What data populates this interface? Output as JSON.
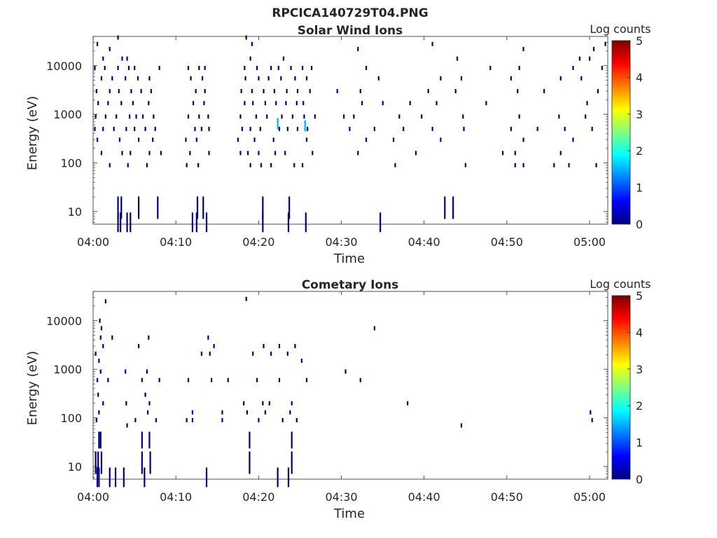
{
  "figure": {
    "suptitle": "RPCICA140729T04.PNG"
  },
  "chart_data": [
    {
      "type": "heatmap",
      "title": "Solar Wind Ions",
      "xlabel": "Time",
      "ylabel": "Energy (eV)",
      "x_ticks": [
        "04:00",
        "04:10",
        "04:20",
        "04:30",
        "04:40",
        "04:50",
        "05:00"
      ],
      "x_range_minutes": [
        0,
        62.2
      ],
      "y_ticks": [
        "10",
        "100",
        "1000",
        "10000"
      ],
      "y_scale": "log",
      "y_range": [
        5.5,
        40000
      ],
      "colorbar": {
        "label": "Log counts",
        "ticks": [
          "0",
          "1",
          "2",
          "3",
          "4",
          "5"
        ],
        "range": [
          0,
          5
        ],
        "colormap": "jet"
      },
      "points": [
        [
          3.0,
          6
        ],
        [
          3.3,
          6
        ],
        [
          4.1,
          6
        ],
        [
          4.5,
          6
        ],
        [
          12.0,
          6
        ],
        [
          12.5,
          6
        ],
        [
          13.7,
          6
        ],
        [
          20.5,
          6
        ],
        [
          23.6,
          6
        ],
        [
          25.7,
          6
        ],
        [
          34.7,
          6
        ],
        [
          3.0,
          12
        ],
        [
          3.4,
          12
        ],
        [
          5.5,
          12
        ],
        [
          7.8,
          12
        ],
        [
          12.6,
          12
        ],
        [
          13.3,
          12
        ],
        [
          20.5,
          12
        ],
        [
          23.7,
          12
        ],
        [
          42.5,
          12
        ],
        [
          43.5,
          12
        ],
        [
          2.0,
          90
        ],
        [
          4.2,
          90
        ],
        [
          6.5,
          90
        ],
        [
          11.3,
          90
        ],
        [
          12.7,
          90
        ],
        [
          19.0,
          90
        ],
        [
          20.3,
          90
        ],
        [
          21.5,
          90
        ],
        [
          24.3,
          90
        ],
        [
          25.3,
          90
        ],
        [
          36.5,
          90
        ],
        [
          45.0,
          90
        ],
        [
          51.0,
          90
        ],
        [
          52.0,
          90
        ],
        [
          55.7,
          90
        ],
        [
          57.5,
          90
        ],
        [
          60.8,
          90
        ],
        [
          1.0,
          160
        ],
        [
          3.5,
          160
        ],
        [
          4.5,
          160
        ],
        [
          6.8,
          160
        ],
        [
          8.2,
          160
        ],
        [
          11.7,
          160
        ],
        [
          14.0,
          160
        ],
        [
          17.8,
          160
        ],
        [
          18.7,
          160
        ],
        [
          20.0,
          160
        ],
        [
          22.0,
          160
        ],
        [
          23.2,
          160
        ],
        [
          26.5,
          160
        ],
        [
          32.0,
          160
        ],
        [
          39.0,
          160
        ],
        [
          49.5,
          160
        ],
        [
          51.0,
          160
        ],
        [
          56.5,
          160
        ],
        [
          0.5,
          300
        ],
        [
          3.2,
          300
        ],
        [
          5.5,
          300
        ],
        [
          7.2,
          300
        ],
        [
          11.2,
          300
        ],
        [
          12.5,
          300
        ],
        [
          17.5,
          300
        ],
        [
          19.5,
          300
        ],
        [
          21.8,
          300
        ],
        [
          25.8,
          300
        ],
        [
          33.0,
          300
        ],
        [
          36.3,
          300
        ],
        [
          42.0,
          300
        ],
        [
          52.0,
          300
        ],
        [
          58.0,
          300
        ],
        [
          0.2,
          500
        ],
        [
          1.2,
          500
        ],
        [
          2.5,
          500
        ],
        [
          4.0,
          500
        ],
        [
          5.0,
          500
        ],
        [
          6.3,
          500
        ],
        [
          7.5,
          500
        ],
        [
          12.3,
          500
        ],
        [
          13.1,
          500
        ],
        [
          14.0,
          500
        ],
        [
          18.0,
          500
        ],
        [
          19.0,
          500
        ],
        [
          20.2,
          500
        ],
        [
          22.5,
          500
        ],
        [
          23.5,
          500
        ],
        [
          24.7,
          500
        ],
        [
          25.9,
          500
        ],
        [
          31.0,
          500
        ],
        [
          34.0,
          500
        ],
        [
          37.5,
          500
        ],
        [
          41.0,
          500
        ],
        [
          44.8,
          500
        ],
        [
          50.5,
          500
        ],
        [
          53.7,
          500
        ],
        [
          57.0,
          500
        ],
        [
          60.3,
          500
        ],
        [
          0.3,
          900
        ],
        [
          1.5,
          900
        ],
        [
          2.8,
          900
        ],
        [
          4.4,
          900
        ],
        [
          5.2,
          900
        ],
        [
          6.0,
          900
        ],
        [
          7.3,
          900
        ],
        [
          11.5,
          900
        ],
        [
          12.8,
          900
        ],
        [
          13.9,
          900
        ],
        [
          17.8,
          900
        ],
        [
          19.7,
          900
        ],
        [
          21.0,
          900
        ],
        [
          22.8,
          900
        ],
        [
          24.1,
          900
        ],
        [
          25.5,
          900
        ],
        [
          26.8,
          900
        ],
        [
          30.3,
          900
        ],
        [
          31.5,
          900
        ],
        [
          37.0,
          900
        ],
        [
          39.7,
          900
        ],
        [
          44.7,
          900
        ],
        [
          51.5,
          900
        ],
        [
          56.3,
          900
        ],
        [
          59.5,
          900
        ],
        [
          0.6,
          1700
        ],
        [
          1.8,
          1700
        ],
        [
          3.4,
          1700
        ],
        [
          4.8,
          1700
        ],
        [
          6.7,
          1700
        ],
        [
          12.1,
          1700
        ],
        [
          13.4,
          1700
        ],
        [
          18.3,
          1700
        ],
        [
          19.3,
          1700
        ],
        [
          20.8,
          1700
        ],
        [
          22.1,
          1700
        ],
        [
          23.3,
          1700
        ],
        [
          24.6,
          1700
        ],
        [
          25.4,
          1700
        ],
        [
          32.5,
          1700
        ],
        [
          35.0,
          1700
        ],
        [
          38.3,
          1700
        ],
        [
          41.5,
          1700
        ],
        [
          47.5,
          1700
        ],
        [
          59.7,
          1700
        ],
        [
          0.4,
          3000
        ],
        [
          2.0,
          3000
        ],
        [
          3.1,
          3000
        ],
        [
          4.6,
          3000
        ],
        [
          5.8,
          3000
        ],
        [
          7.0,
          3000
        ],
        [
          12.4,
          3000
        ],
        [
          13.5,
          3000
        ],
        [
          17.9,
          3000
        ],
        [
          19.2,
          3000
        ],
        [
          20.6,
          3000
        ],
        [
          21.9,
          3000
        ],
        [
          23.4,
          3000
        ],
        [
          24.7,
          3000
        ],
        [
          26.2,
          3000
        ],
        [
          29.5,
          3000
        ],
        [
          32.3,
          3000
        ],
        [
          40.5,
          3000
        ],
        [
          43.8,
          3000
        ],
        [
          51.3,
          3000
        ],
        [
          54.5,
          3000
        ],
        [
          61.0,
          3000
        ],
        [
          1.0,
          5500
        ],
        [
          2.3,
          5500
        ],
        [
          3.9,
          5500
        ],
        [
          5.4,
          5500
        ],
        [
          6.8,
          5500
        ],
        [
          11.8,
          5500
        ],
        [
          13.2,
          5500
        ],
        [
          18.4,
          5500
        ],
        [
          20.0,
          5500
        ],
        [
          21.2,
          5500
        ],
        [
          22.7,
          5500
        ],
        [
          24.4,
          5500
        ],
        [
          25.8,
          5500
        ],
        [
          34.5,
          5500
        ],
        [
          42.0,
          5500
        ],
        [
          44.5,
          5500
        ],
        [
          50.5,
          5500
        ],
        [
          56.5,
          5500
        ],
        [
          59.0,
          5500
        ],
        [
          0.2,
          9000
        ],
        [
          1.4,
          9000
        ],
        [
          3.0,
          9000
        ],
        [
          4.3,
          9000
        ],
        [
          5.0,
          9000
        ],
        [
          8.0,
          9000
        ],
        [
          11.5,
          9000
        ],
        [
          12.8,
          9000
        ],
        [
          13.5,
          9000
        ],
        [
          18.3,
          9000
        ],
        [
          19.8,
          9000
        ],
        [
          21.5,
          9000
        ],
        [
          22.4,
          9000
        ],
        [
          23.9,
          9000
        ],
        [
          25.3,
          9000
        ],
        [
          26.4,
          9000
        ],
        [
          33.0,
          9000
        ],
        [
          48.0,
          9000
        ],
        [
          51.5,
          9000
        ],
        [
          58.0,
          9000
        ],
        [
          61.5,
          9000
        ],
        [
          1.2,
          14000
        ],
        [
          3.5,
          14000
        ],
        [
          4.1,
          14000
        ],
        [
          19.0,
          14000
        ],
        [
          23.0,
          14000
        ],
        [
          44.0,
          14000
        ],
        [
          58.8,
          14000
        ],
        [
          60.0,
          14000
        ],
        [
          2.0,
          22000
        ],
        [
          32.0,
          22000
        ],
        [
          52.0,
          22000
        ],
        [
          60.5,
          22000
        ],
        [
          0.5,
          28000
        ],
        [
          19.2,
          28000
        ],
        [
          41.0,
          28000
        ],
        [
          61.9,
          28000
        ],
        [
          3.0,
          38000
        ],
        [
          18.5,
          38000
        ]
      ],
      "hot_points": [
        [
          22.3,
          640
        ],
        [
          25.6,
          580
        ]
      ]
    },
    {
      "type": "heatmap",
      "title": "Cometary Ions",
      "xlabel": "Time",
      "ylabel": "Energy (eV)",
      "x_ticks": [
        "04:00",
        "04:10",
        "04:20",
        "04:30",
        "04:40",
        "04:50",
        "05:00"
      ],
      "x_range_minutes": [
        0,
        62.2
      ],
      "y_ticks": [
        "10",
        "100",
        "1000",
        "10000"
      ],
      "y_scale": "log",
      "y_range": [
        5.5,
        40000
      ],
      "colorbar": {
        "label": "Log counts",
        "ticks": [
          "0",
          "1",
          "2",
          "3",
          "4",
          "5"
        ],
        "range": [
          0,
          5
        ],
        "colormap": "jet"
      },
      "points": [
        [
          0.5,
          6
        ],
        [
          0.7,
          6
        ],
        [
          2.0,
          6
        ],
        [
          2.7,
          6
        ],
        [
          3.7,
          6
        ],
        [
          6.2,
          6
        ],
        [
          13.7,
          6
        ],
        [
          22.3,
          6
        ],
        [
          23.6,
          6
        ],
        [
          0.3,
          12
        ],
        [
          0.6,
          12
        ],
        [
          1.0,
          12
        ],
        [
          5.9,
          12
        ],
        [
          6.9,
          12
        ],
        [
          18.9,
          12
        ],
        [
          24.0,
          12
        ],
        [
          0.7,
          35
        ],
        [
          0.9,
          35
        ],
        [
          5.9,
          35
        ],
        [
          6.8,
          35
        ],
        [
          18.9,
          35
        ],
        [
          24.0,
          35
        ],
        [
          4.1,
          70
        ],
        [
          44.5,
          70
        ],
        [
          0.4,
          90
        ],
        [
          5.1,
          90
        ],
        [
          7.6,
          90
        ],
        [
          11.3,
          90
        ],
        [
          12.0,
          90
        ],
        [
          15.6,
          90
        ],
        [
          20.0,
          90
        ],
        [
          22.9,
          90
        ],
        [
          24.6,
          90
        ],
        [
          60.3,
          90
        ],
        [
          0.7,
          130
        ],
        [
          6.6,
          130
        ],
        [
          12.0,
          130
        ],
        [
          15.6,
          130
        ],
        [
          18.6,
          130
        ],
        [
          20.8,
          130
        ],
        [
          23.8,
          130
        ],
        [
          60.1,
          130
        ],
        [
          1.2,
          200
        ],
        [
          4.0,
          200
        ],
        [
          6.8,
          200
        ],
        [
          18.2,
          200
        ],
        [
          20.5,
          200
        ],
        [
          21.3,
          200
        ],
        [
          24.0,
          200
        ],
        [
          38.0,
          200
        ],
        [
          0.6,
          300
        ],
        [
          6.3,
          300
        ],
        [
          0.5,
          600
        ],
        [
          1.8,
          600
        ],
        [
          5.9,
          600
        ],
        [
          8.0,
          600
        ],
        [
          11.5,
          600
        ],
        [
          14.3,
          600
        ],
        [
          16.3,
          600
        ],
        [
          19.8,
          600
        ],
        [
          22.5,
          600
        ],
        [
          25.8,
          600
        ],
        [
          32.3,
          600
        ],
        [
          0.9,
          900
        ],
        [
          3.9,
          900
        ],
        [
          6.5,
          900
        ],
        [
          30.5,
          900
        ],
        [
          0.7,
          1500
        ],
        [
          25.2,
          1500
        ],
        [
          0.3,
          2100
        ],
        [
          13.1,
          2100
        ],
        [
          14.1,
          2100
        ],
        [
          19.3,
          2100
        ],
        [
          21.5,
          2100
        ],
        [
          23.5,
          2100
        ],
        [
          1.2,
          3000
        ],
        [
          5.5,
          3000
        ],
        [
          14.6,
          3000
        ],
        [
          20.6,
          3000
        ],
        [
          22.5,
          3000
        ],
        [
          24.4,
          3000
        ],
        [
          0.9,
          4500
        ],
        [
          2.3,
          4500
        ],
        [
          6.7,
          4500
        ],
        [
          13.9,
          4500
        ],
        [
          1.0,
          7000
        ],
        [
          34.0,
          7000
        ],
        [
          0.8,
          10000
        ],
        [
          1.5,
          25000
        ],
        [
          18.5,
          28000
        ]
      ],
      "hot_points": []
    }
  ]
}
